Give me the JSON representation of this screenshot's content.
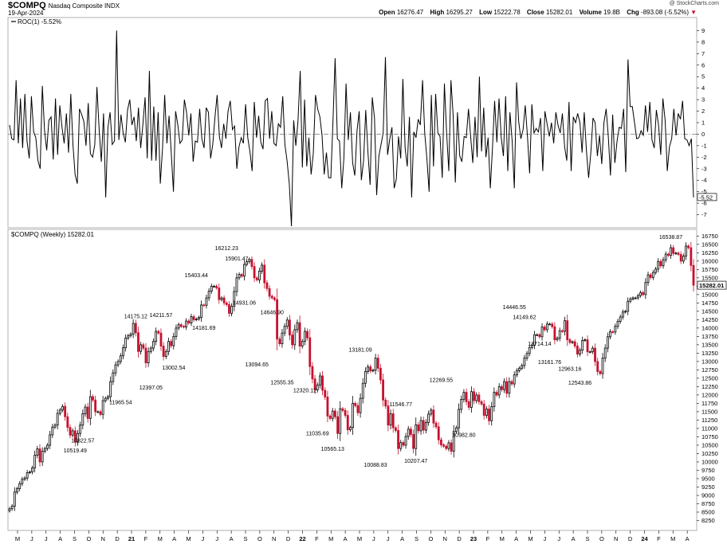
{
  "header": {
    "symbol": "$COMPQ",
    "description": "Nasdaq Composite INDX",
    "date": "19-Apr-2024",
    "brand": "@ StockCharts.com",
    "open_label": "Open",
    "open": "16276.47",
    "high_label": "High",
    "high": "16295.27",
    "low_label": "Low",
    "low": "15222.78",
    "close_label": "Close",
    "close": "15282.01",
    "volume_label": "Volume",
    "volume": "19.8B",
    "chg_label": "Chg",
    "chg": "-893.08 (-5.52%)"
  },
  "roc_panel": {
    "title": "ROC(1) -5.52%",
    "last_value_label": "-5.52"
  },
  "price_panel": {
    "title": "$COMPQ (Weekly) 15282.01",
    "last_value_label": "15282.01"
  },
  "colors": {
    "up": "#000000",
    "down": "#c8102e",
    "grid": "#d9d9d9",
    "zero": "#888888"
  },
  "chart_data": [
    {
      "type": "line",
      "name": "ROC(1)",
      "ylim": [
        -8,
        10
      ],
      "y_ticks": [
        9,
        8,
        7,
        6,
        5,
        4,
        3,
        2,
        1,
        0,
        -1,
        -2,
        -3,
        -4,
        -5,
        -6,
        -7
      ],
      "values": [
        0.8,
        -0.4,
        -0.5,
        4.7,
        -0.8,
        3.1,
        -1.2,
        3.5,
        -0.6,
        -2.1,
        3.3,
        0.2,
        -0.3,
        -2.3,
        -3.0,
        4.2,
        0.3,
        -1.4,
        1.2,
        1.5,
        -2.2,
        3.1,
        -1.8,
        2.5,
        0.6,
        -0.8,
        1.8,
        -1.6,
        3.5,
        -0.9,
        -3.5,
        -4.3,
        2.2,
        1.7,
        1.1,
        -1.0,
        2.7,
        -1.7,
        -2.0,
        -0.9,
        4.1,
        0.4,
        -2.4,
        1.8,
        -5.5,
        0.6,
        1.9,
        -0.9,
        -0.6,
        9.0,
        -0.5,
        1.7,
        0.1,
        -0.7,
        2.1,
        3.0,
        0.8,
        1.5,
        -0.6,
        2.3,
        -1.2,
        0.8,
        3.2,
        -2.1,
        5.5,
        -2.3,
        2.4,
        -2.3,
        1.9,
        -4.3,
        -1.2,
        3.4,
        -0.8,
        1.6,
        -1.6,
        -5.0,
        2.0,
        0.8,
        -0.8,
        -0.5,
        3.0,
        1.9,
        -0.1,
        1.8,
        -2.4,
        -0.6,
        -0.7,
        2.2,
        -0.4,
        -1.2,
        2.3,
        1.9,
        -2.1,
        -0.9,
        1.5,
        3.4,
        -0.2,
        -1.2,
        0.9,
        -0.4,
        2.0,
        2.9,
        0.4,
        0.7,
        -3.0,
        -1.1,
        -0.3,
        -0.8,
        2.6,
        -0.3,
        -1.5,
        -3.2,
        2.8,
        -0.3,
        1.6,
        -0.7,
        -1.3,
        2.9,
        3.1,
        -0.4,
        2.0,
        -0.8,
        -1.0,
        0.9,
        0.6,
        3.3,
        -0.9,
        -2.3,
        -4.3,
        -8.0,
        1.2,
        -1.0,
        1.1,
        5.5,
        -2.9,
        3.0,
        -2.8,
        -0.3,
        -3.5,
        -1.7,
        3.4,
        2.2,
        1.5,
        -0.1,
        -3.5,
        -1.6,
        -3.8,
        -3.8,
        1.1,
        6.6,
        -0.4,
        -0.6,
        -4.7,
        -2.1,
        4.4,
        -0.5,
        1.9,
        -2.5,
        -3.6,
        0.3,
        2.0,
        -4.0,
        -2.3,
        2.1,
        -1.6,
        -4.4,
        3.2,
        1.4,
        -5.3,
        -1.9,
        -0.9,
        0.1,
        6.7,
        -1.8,
        -0.4,
        0.6,
        -4.7,
        -3.9,
        -0.2,
        -2.1,
        4.8,
        -1.2,
        -2.8,
        1.5,
        -5.5,
        0.2,
        -0.3,
        1.3,
        0.8,
        4.7,
        0.1,
        -2.2,
        -5.0,
        3.4,
        -2.8,
        3.5,
        0.1,
        -0.2,
        -3.8,
        4.4,
        0.2,
        -3.2,
        4.7,
        1.6,
        -4.2,
        1.9,
        -1.9,
        -2.4,
        -0.2,
        -0.3,
        2.2,
        -0.2,
        -2.5,
        1.5,
        -2.0,
        5.0,
        -1.5,
        2.3,
        -2.0,
        -0.3,
        -4.7,
        -1.2,
        2.9,
        -0.7,
        3.1,
        -0.3,
        -1.9,
        3.3,
        -3.2,
        1.9,
        -0.6,
        -4.7,
        4.5,
        1.1,
        -0.4,
        0.4,
        2.5,
        -0.2,
        -3.4,
        2.6,
        0.1,
        0.5,
        0.2,
        1.4,
        -3.2,
        2.0,
        0.9,
        -0.2,
        1.0,
        -0.8,
        1.9,
        0.8,
        0.1,
        1.8,
        -1.1,
        -2.3,
        2.8,
        -3.2,
        1.5,
        1.0,
        1.8,
        1.0,
        -1.6,
        1.9,
        -1.5,
        -3.8,
        -1.6,
        1.4,
        1.0,
        -1.9,
        -0.1,
        -2.6,
        1.0,
        2.2,
        -0.2,
        -3.6,
        1.7,
        -2.5,
        -0.6,
        0.6,
        0.5,
        2.2,
        -3.3,
        6.5,
        2.4,
        2.4,
        1.0,
        -0.4,
        -0.3,
        0.3,
        -0.1,
        2.5,
        0.2,
        2.8,
        -0.5,
        -1.2,
        2.1,
        0.8,
        -1.8,
        3.1,
        1.2,
        -3.2,
        -1.1,
        -0.4,
        2.2,
        -0.1,
        1.8,
        1.3,
        2.9,
        -0.4,
        -0.5,
        -1.0,
        -0.4,
        -5.5
      ]
    },
    {
      "type": "candlestick",
      "name": "$COMPQ (Weekly)",
      "ylim": [
        8000,
        16900
      ],
      "y_ticks": [
        16750,
        16500,
        16250,
        16000,
        15750,
        15500,
        15250,
        15000,
        14750,
        14500,
        14250,
        14000,
        13750,
        13500,
        13250,
        13000,
        12750,
        12500,
        12250,
        12000,
        11750,
        11500,
        11250,
        11000,
        10750,
        10500,
        10250,
        10000,
        9750,
        9500,
        9250,
        9000,
        8750,
        8500,
        8250
      ],
      "closes": [
        8600,
        8680,
        9100,
        9200,
        9350,
        9480,
        9520,
        9680,
        9700,
        9820,
        10200,
        10390,
        10000,
        10320,
        10400,
        10500,
        10810,
        11040,
        11100,
        11450,
        11550,
        11660,
        11350,
        11030,
        10800,
        10930,
        10590,
        10850,
        11100,
        11440,
        11640,
        11300,
        11950,
        11850,
        11500,
        11500,
        11420,
        11830,
        11900,
        11950,
        12400,
        12660,
        12900,
        13000,
        13170,
        13410,
        13700,
        13770,
        13820,
        14140,
        13860,
        13300,
        13500,
        13400,
        12960,
        13300,
        13400,
        13600,
        13900,
        13850,
        13460,
        13150,
        13300,
        13600,
        13470,
        13750,
        14000,
        14100,
        14050,
        14030,
        14210,
        14150,
        14340,
        14250,
        14270,
        14320,
        14690,
        14680,
        14900,
        15100,
        15250,
        15250,
        15200,
        14850,
        14900,
        14750,
        14700,
        14440,
        14650,
        15090,
        15500,
        15600,
        15550,
        15900,
        15980,
        16050,
        15840,
        15500,
        15440,
        15700,
        15880,
        15350,
        15180,
        14950,
        14900,
        14850,
        13670,
        13530,
        13850,
        14050,
        14240,
        13790,
        13500,
        13950,
        14160,
        13460,
        13600,
        13900,
        13710,
        12850,
        12480,
        12150,
        12300,
        12570,
        12140,
        11940,
        11370,
        11300,
        11520,
        11350,
        10850,
        11590,
        11540,
        11390,
        10960,
        11030,
        11750,
        11680,
        11470,
        11900,
        12350,
        12700,
        12840,
        12720,
        12740,
        13100,
        12800,
        12450,
        11850,
        11670,
        11100,
        11440,
        11020,
        10940,
        10400,
        10580,
        10500,
        10760,
        10980,
        10820,
        10400,
        11110,
        10930,
        11240,
        10950,
        11180,
        11430,
        11550,
        11160,
        11050,
        10660,
        10510,
        10470,
        10400,
        10570,
        10320,
        10910,
        11020,
        11570,
        11870,
        12080,
        11800,
        11630,
        12100,
        11830,
        12000,
        11800,
        11730,
        11390,
        11580,
        11230,
        11650,
        12080,
        12000,
        12250,
        12160,
        12400,
        12050,
        12400,
        12330,
        12600,
        12730,
        12800,
        12880,
        13100,
        13240,
        13420,
        13490,
        13800,
        13800,
        13740,
        14030,
        13950,
        14120,
        14120,
        14040,
        13650,
        13700,
        13920,
        13900,
        14220,
        13650,
        13570,
        13590,
        13460,
        13220,
        13340,
        13630,
        13650,
        13290,
        13290,
        13400,
        13000,
        12700,
        12640,
        13100,
        13400,
        13740,
        13890,
        13880,
        14050,
        14200,
        14330,
        14480,
        14500,
        14800,
        14870,
        14900,
        14900,
        14970,
        15060,
        15000,
        15360,
        15590,
        15510,
        15660,
        15760,
        15990,
        15860,
        16040,
        16210,
        16170,
        16400,
        16230,
        16240,
        16200,
        16000,
        16150,
        16450,
        16400,
        15870,
        15280
      ],
      "labels": [
        {
          "text": "10519.49"
        },
        {
          "text": "10822.57"
        },
        {
          "text": "11965.54"
        },
        {
          "text": "14175.12"
        },
        {
          "text": "12397.05"
        },
        {
          "text": "14211.57"
        },
        {
          "text": "13002.54"
        },
        {
          "text": "15403.44"
        },
        {
          "text": "14181.69"
        },
        {
          "text": "16212.23"
        },
        {
          "text": "15901.47"
        },
        {
          "text": "14931.06"
        },
        {
          "text": "13094.65"
        },
        {
          "text": "14646.90"
        },
        {
          "text": "12555.35"
        },
        {
          "text": "12320.12"
        },
        {
          "text": "11035.69"
        },
        {
          "text": "10565.13"
        },
        {
          "text": "13181.09"
        },
        {
          "text": "10088.83"
        },
        {
          "text": "11546.77"
        },
        {
          "text": "10207.47"
        },
        {
          "text": "12269.55"
        },
        {
          "text": "10982.80"
        },
        {
          "text": "14446.55"
        },
        {
          "text": "14149.62"
        },
        {
          "text": "13714.14"
        },
        {
          "text": "13161.76"
        },
        {
          "text": "12963.16"
        },
        {
          "text": "12543.86"
        },
        {
          "text": "16538.87"
        }
      ]
    }
  ],
  "x_axis": {
    "labels": [
      "M",
      "J",
      "J",
      "A",
      "S",
      "O",
      "N",
      "D",
      "21",
      "F",
      "M",
      "A",
      "M",
      "J",
      "J",
      "A",
      "S",
      "O",
      "N",
      "D",
      "22",
      "F",
      "M",
      "A",
      "M",
      "J",
      "J",
      "A",
      "S",
      "O",
      "N",
      "D",
      "23",
      "F",
      "M",
      "A",
      "M",
      "J",
      "J",
      "A",
      "S",
      "O",
      "N",
      "D",
      "24",
      "F",
      "M",
      "A"
    ]
  }
}
